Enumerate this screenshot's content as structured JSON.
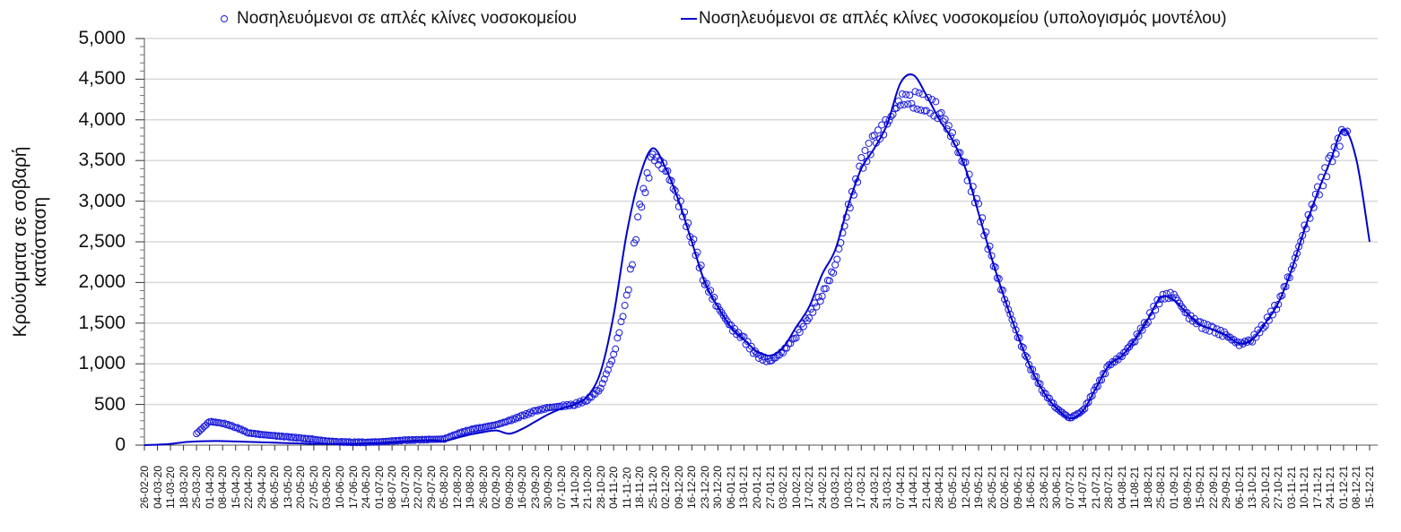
{
  "legend": {
    "observed_label": "Νοσηλευόμενοι σε απλές κλίνες νοσοκομείου",
    "model_label": "Νοσηλευόμενοι σε απλές κλίνες νοσοκομείου (υπολογισμός μοντέλου)"
  },
  "axes": {
    "ylabel_line1": "Κρούσματα σε σοβαρή",
    "ylabel_line2": "κατάσταση",
    "yticks": [
      "0",
      "500",
      "1,000",
      "1,500",
      "2,000",
      "2,500",
      "3,000",
      "3,500",
      "4,000",
      "4,500",
      "5,000"
    ]
  },
  "colors": {
    "series": "#0000cc",
    "marker": "#1a1adb",
    "grid": "#d9d9d9",
    "axis": "#555555"
  },
  "chart_data": {
    "type": "line",
    "title": "",
    "xlabel": "",
    "ylabel": "Κρούσματα σε σοβαρή κατάσταση",
    "ylim": [
      0,
      5000
    ],
    "grid": true,
    "legend_position": "top",
    "categories": [
      "26-02-20",
      "04-03-20",
      "11-03-20",
      "18-03-20",
      "25-03-20",
      "01-04-20",
      "08-04-20",
      "15-04-20",
      "22-04-20",
      "29-04-20",
      "06-05-20",
      "13-05-20",
      "20-05-20",
      "27-05-20",
      "03-06-20",
      "10-06-20",
      "17-06-20",
      "24-06-20",
      "01-07-20",
      "08-07-20",
      "15-07-20",
      "22-07-20",
      "29-07-20",
      "05-08-20",
      "12-08-20",
      "19-08-20",
      "26-08-20",
      "02-09-20",
      "09-09-20",
      "16-09-20",
      "23-09-20",
      "30-09-20",
      "07-10-20",
      "14-10-20",
      "21-10-20",
      "28-10-20",
      "04-11-20",
      "11-11-20",
      "18-11-20",
      "25-11-20",
      "02-12-20",
      "09-12-20",
      "16-12-20",
      "23-12-20",
      "30-12-20",
      "06-01-21",
      "13-01-21",
      "20-01-21",
      "27-01-21",
      "03-02-21",
      "10-02-21",
      "17-02-21",
      "24-02-21",
      "03-03-21",
      "10-03-21",
      "17-03-21",
      "24-03-21",
      "31-03-21",
      "07-04-21",
      "14-04-21",
      "21-04-21",
      "28-04-21",
      "05-05-21",
      "12-05-21",
      "19-05-21",
      "26-05-21",
      "02-06-21",
      "09-06-21",
      "16-06-21",
      "23-06-21",
      "30-06-21",
      "07-07-21",
      "14-07-21",
      "21-07-21",
      "28-07-21",
      "04-08-21",
      "11-08-21",
      "18-08-21",
      "25-08-21",
      "01-09-21",
      "08-09-21",
      "15-09-21",
      "22-09-21",
      "29-09-21",
      "06-10-21",
      "13-10-21",
      "20-10-21",
      "27-10-21",
      "03-11-21",
      "10-11-21",
      "17-11-21",
      "24-11-21",
      "01-12-21",
      "08-12-21",
      "15-12-21"
    ],
    "series": [
      {
        "name": "Νοσηλευόμενοι σε απλές κλίνες νοσοκομείου",
        "style": "markers",
        "values": [
          null,
          null,
          null,
          null,
          140,
          290,
          270,
          220,
          150,
          130,
          115,
          100,
          85,
          70,
          50,
          40,
          35,
          35,
          40,
          50,
          60,
          65,
          70,
          75,
          140,
          190,
          220,
          250,
          300,
          360,
          420,
          460,
          480,
          500,
          560,
          700,
          1100,
          1800,
          2900,
          3550,
          3400,
          3000,
          2550,
          2000,
          1700,
          1450,
          1300,
          1100,
          1030,
          1150,
          1350,
          1600,
          1850,
          2200,
          2900,
          3450,
          3750,
          3950,
          4250,
          4250,
          4200,
          4100,
          3800,
          3400,
          2900,
          2300,
          1800,
          1350,
          950,
          650,
          450,
          330,
          420,
          700,
          980,
          1100,
          1300,
          1550,
          1820,
          1850,
          1600,
          1480,
          1420,
          1350,
          1240,
          1300,
          1500,
          1750,
          2150,
          2650,
          3100,
          3500,
          3850,
          null,
          null
        ]
      },
      {
        "name": "Νοσηλευόμενοι σε απλές κλίνες νοσοκομείου (υπολογισμός μοντέλου)",
        "style": "line",
        "values": [
          0,
          5,
          15,
          35,
          45,
          50,
          50,
          45,
          40,
          35,
          30,
          25,
          20,
          15,
          15,
          15,
          15,
          20,
          25,
          35,
          45,
          55,
          60,
          50,
          90,
          130,
          160,
          180,
          140,
          200,
          290,
          380,
          450,
          500,
          600,
          900,
          1600,
          2600,
          3300,
          3650,
          3400,
          3000,
          2500,
          2000,
          1700,
          1450,
          1300,
          1150,
          1100,
          1200,
          1450,
          1700,
          2100,
          2400,
          2950,
          3400,
          3650,
          3950,
          4450,
          4550,
          4300,
          4000,
          3750,
          3400,
          2850,
          2300,
          1800,
          1350,
          950,
          650,
          450,
          330,
          420,
          700,
          980,
          1100,
          1300,
          1550,
          1820,
          1780,
          1620,
          1480,
          1420,
          1350,
          1250,
          1300,
          1500,
          1750,
          2150,
          2650,
          3100,
          3500,
          3880,
          3500,
          2500
        ]
      }
    ]
  }
}
